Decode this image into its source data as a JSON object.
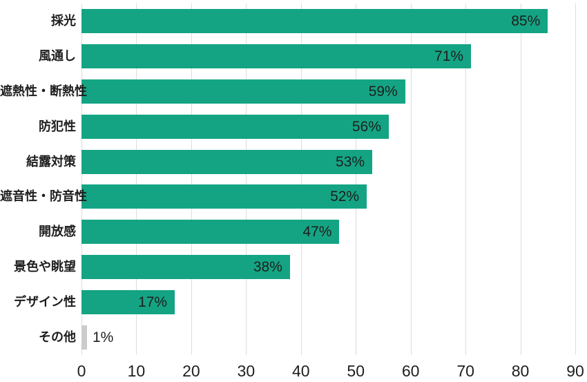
{
  "chart_data": {
    "type": "bar",
    "orientation": "horizontal",
    "title": "",
    "xlabel": "",
    "ylabel": "",
    "categories": [
      "採光",
      "風通し",
      "遮熱性・断熱性",
      "防犯性",
      "結露対策",
      "遮音性・防音性",
      "開放感",
      "景色や眺望",
      "デザイン性",
      "その他"
    ],
    "values": [
      85,
      71,
      59,
      56,
      53,
      52,
      47,
      38,
      17,
      1
    ],
    "value_labels": [
      "85%",
      "71%",
      "59%",
      "56%",
      "53%",
      "52%",
      "47%",
      "38%",
      "17%",
      "1%"
    ],
    "bar_colors": [
      "#14a483",
      "#14a483",
      "#14a483",
      "#14a483",
      "#14a483",
      "#14a483",
      "#14a483",
      "#14a483",
      "#14a483",
      "#cbcbcb"
    ],
    "xlim": [
      0,
      90
    ],
    "xticks": [
      0,
      10,
      20,
      30,
      40,
      50,
      60,
      70,
      80,
      90
    ],
    "grid": "vertical",
    "legend": "none"
  },
  "colors": {
    "bar_green": "#14a483",
    "bar_gray": "#cbcbcb",
    "gridline": "#dcdcdc",
    "text": "#1e1e1e",
    "background": "#ffffff"
  }
}
